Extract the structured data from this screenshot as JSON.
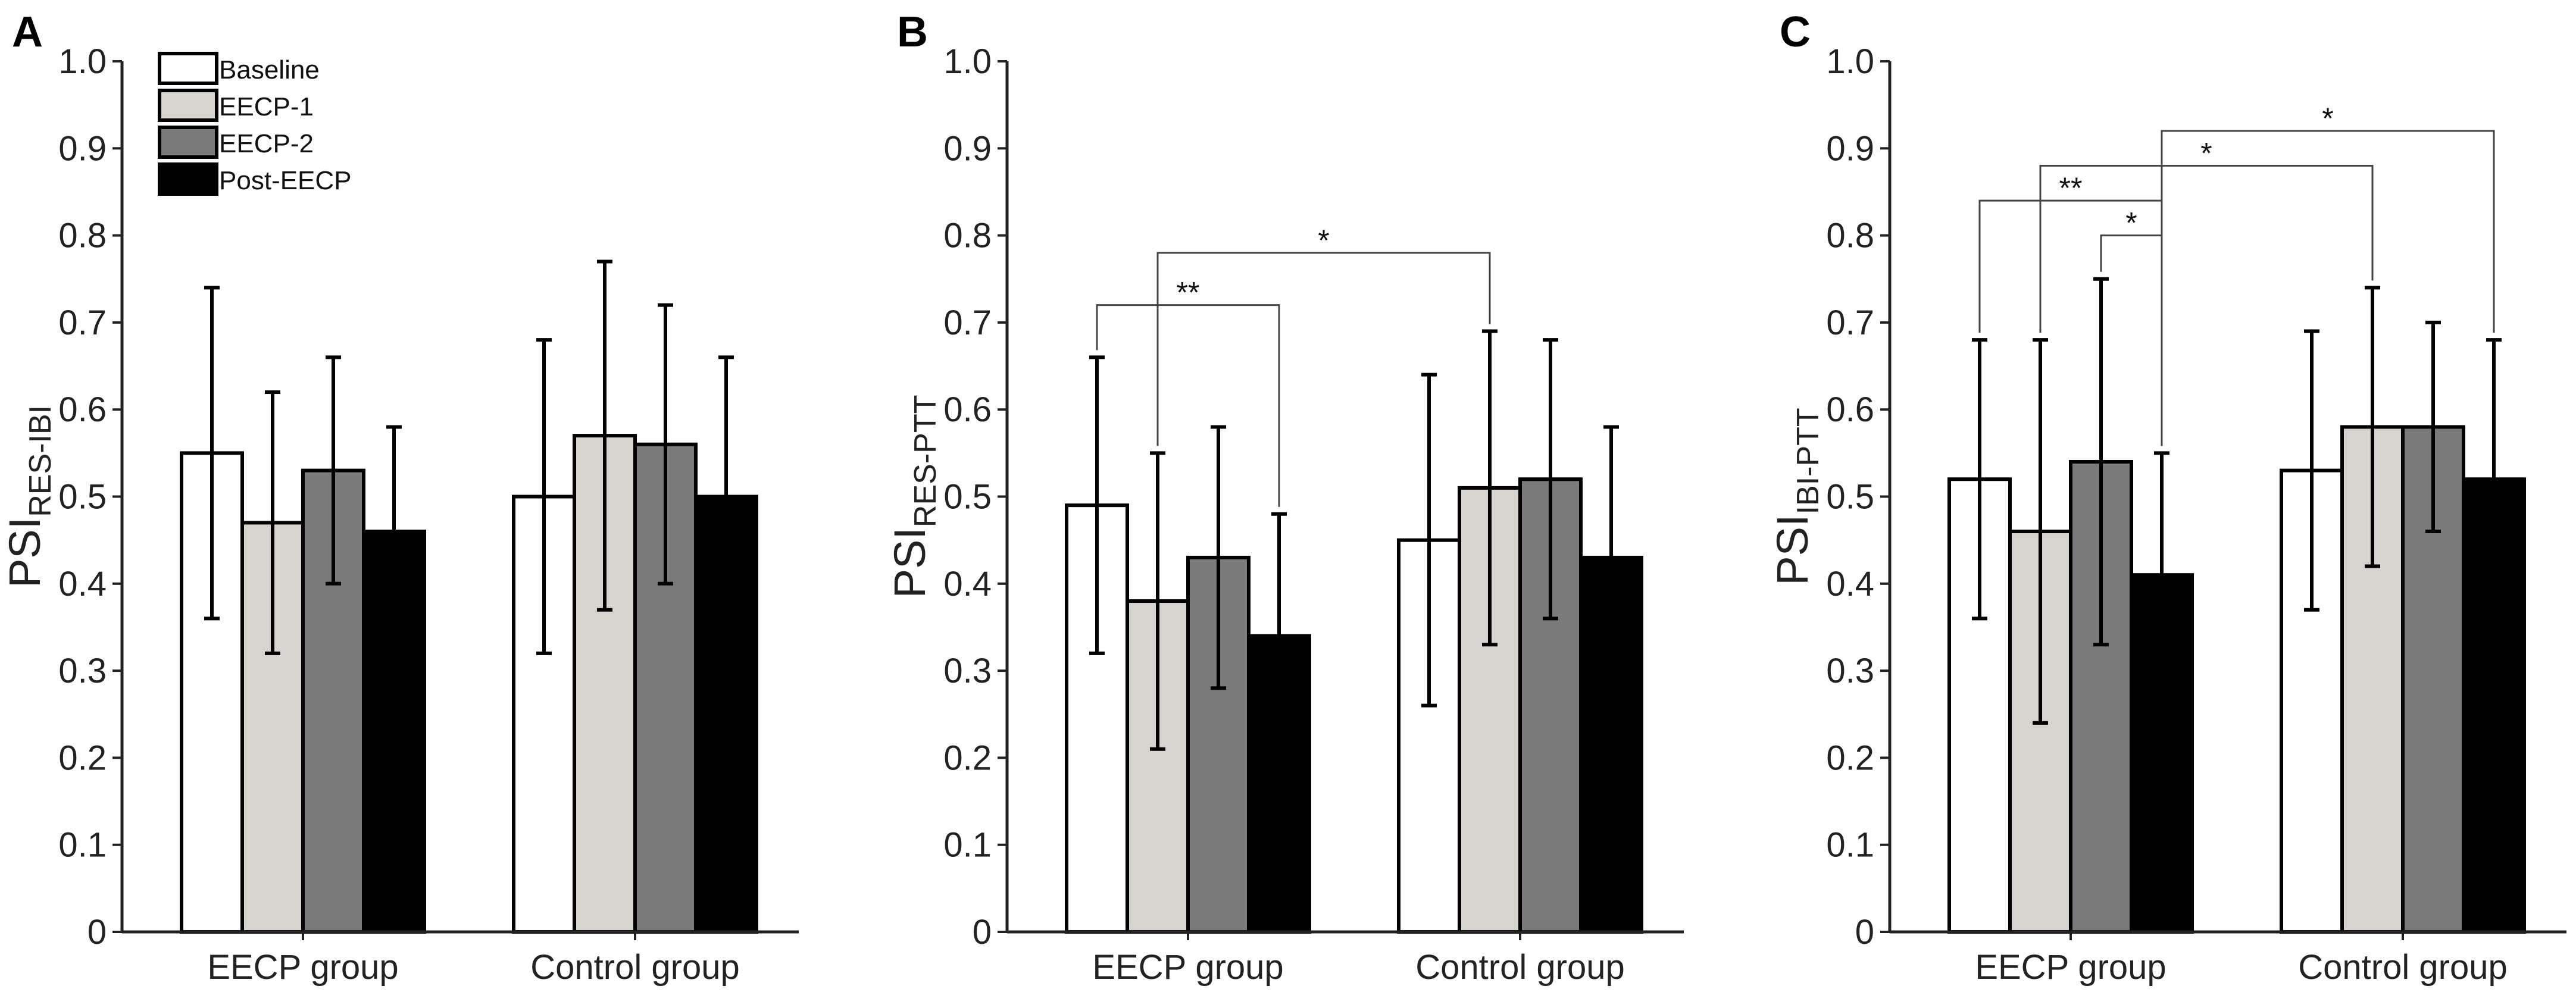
{
  "chart_data": {
    "type": "bar",
    "legend": {
      "placement": "top-left",
      "entries": [
        {
          "label": "Baseline",
          "color": "#ffffff"
        },
        {
          "label": "EECP-1",
          "color": "#d7d3cf"
        },
        {
          "label": "EECP-2",
          "color": "#7a7a7a"
        },
        {
          "label": "Post-EECP",
          "color": "#000000"
        }
      ]
    },
    "ylim": [
      0,
      1.0
    ],
    "yticks": [
      "0",
      "0.1",
      "0.2",
      "0.3",
      "0.4",
      "0.5",
      "0.6",
      "0.7",
      "0.8",
      "0.9",
      "1.0"
    ],
    "categories": [
      "EECP group",
      "Control group"
    ],
    "panels": [
      {
        "letter": "A",
        "ylabel_main": "PSI",
        "ylabel_sub": "RES-IBI",
        "series": [
          {
            "name": "Baseline",
            "values": [
              0.55,
              0.5
            ],
            "errors": [
              0.19,
              0.18
            ]
          },
          {
            "name": "EECP-1",
            "values": [
              0.47,
              0.57
            ],
            "errors": [
              0.15,
              0.2
            ]
          },
          {
            "name": "EECP-2",
            "values": [
              0.53,
              0.56
            ],
            "errors": [
              0.13,
              0.16
            ]
          },
          {
            "name": "Post-EECP",
            "values": [
              0.46,
              0.5
            ],
            "errors": [
              0.12,
              0.16
            ]
          }
        ],
        "significance": []
      },
      {
        "letter": "B",
        "ylabel_main": "PSI",
        "ylabel_sub": "RES-PTT",
        "series": [
          {
            "name": "Baseline",
            "values": [
              0.49,
              0.45
            ],
            "errors": [
              0.17,
              0.19
            ]
          },
          {
            "name": "EECP-1",
            "values": [
              0.38,
              0.51
            ],
            "errors": [
              0.17,
              0.18
            ]
          },
          {
            "name": "EECP-2",
            "values": [
              0.43,
              0.52
            ],
            "errors": [
              0.15,
              0.16
            ]
          },
          {
            "name": "Post-EECP",
            "values": [
              0.34,
              0.43
            ],
            "errors": [
              0.14,
              0.15
            ]
          }
        ],
        "significance": [
          {
            "from": [
              0,
              0
            ],
            "to": [
              0,
              3
            ],
            "level": 0.72,
            "label": "**"
          },
          {
            "from": [
              0,
              1
            ],
            "to": [
              1,
              1
            ],
            "level": 0.78,
            "label": "*"
          }
        ]
      },
      {
        "letter": "C",
        "ylabel_main": "PSI",
        "ylabel_sub": "IBI-PTT",
        "series": [
          {
            "name": "Baseline",
            "values": [
              0.52,
              0.53
            ],
            "errors": [
              0.16,
              0.16
            ]
          },
          {
            "name": "EECP-1",
            "values": [
              0.46,
              0.58
            ],
            "errors": [
              0.22,
              0.16
            ]
          },
          {
            "name": "EECP-2",
            "values": [
              0.54,
              0.58
            ],
            "errors": [
              0.21,
              0.12
            ]
          },
          {
            "name": "Post-EECP",
            "values": [
              0.41,
              0.52
            ],
            "errors": [
              0.14,
              0.16
            ]
          }
        ],
        "significance": [
          {
            "from": [
              0,
              2
            ],
            "to": [
              0,
              3
            ],
            "level": 0.8,
            "label": "*"
          },
          {
            "from": [
              0,
              0
            ],
            "to": [
              0,
              3
            ],
            "level": 0.84,
            "label": "**"
          },
          {
            "from": [
              0,
              1
            ],
            "to": [
              1,
              1
            ],
            "level": 0.88,
            "label": "*"
          },
          {
            "from": [
              0,
              3
            ],
            "to": [
              1,
              3
            ],
            "level": 0.92,
            "label": "*"
          }
        ]
      }
    ]
  }
}
